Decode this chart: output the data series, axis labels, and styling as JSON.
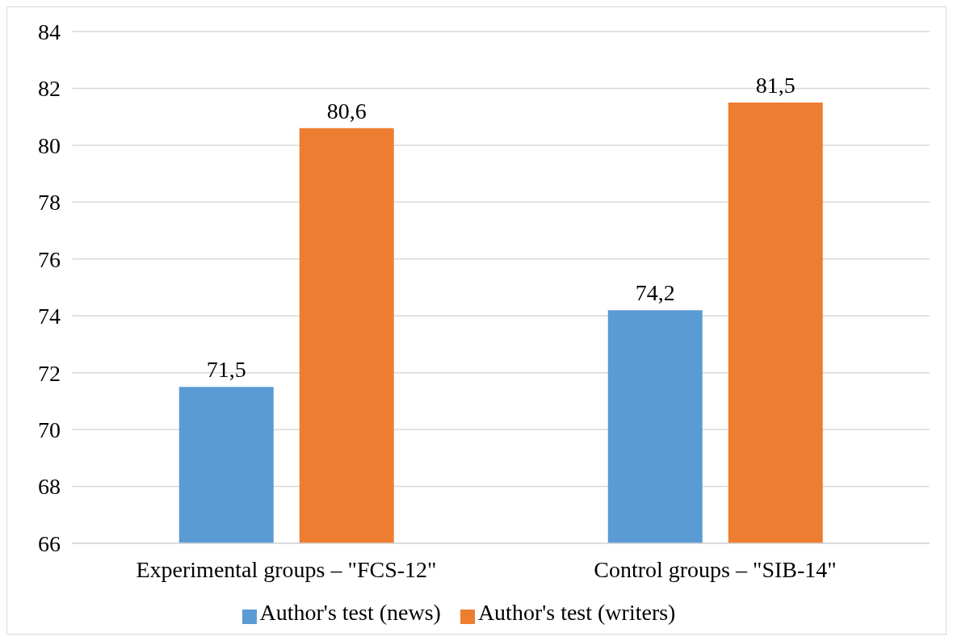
{
  "chart_data": {
    "type": "bar",
    "categories": [
      "Experimental groups – \"FCS-12\"",
      "Control groups – \"SIB-14\""
    ],
    "series": [
      {
        "name": "Author's test (news)",
        "color": "#5b9bd5",
        "values": [
          71.5,
          74.2
        ],
        "value_labels": [
          "71,5",
          "74,2"
        ]
      },
      {
        "name": "Author's test (writers)",
        "color": "#ed7d31",
        "values": [
          80.6,
          81.5
        ],
        "value_labels": [
          "80,6",
          "81,5"
        ]
      }
    ],
    "ylim": [
      66,
      84
    ],
    "yticks": [
      66,
      68,
      70,
      72,
      74,
      76,
      78,
      80,
      82,
      84
    ],
    "grid": "y",
    "legend": "bottom"
  }
}
